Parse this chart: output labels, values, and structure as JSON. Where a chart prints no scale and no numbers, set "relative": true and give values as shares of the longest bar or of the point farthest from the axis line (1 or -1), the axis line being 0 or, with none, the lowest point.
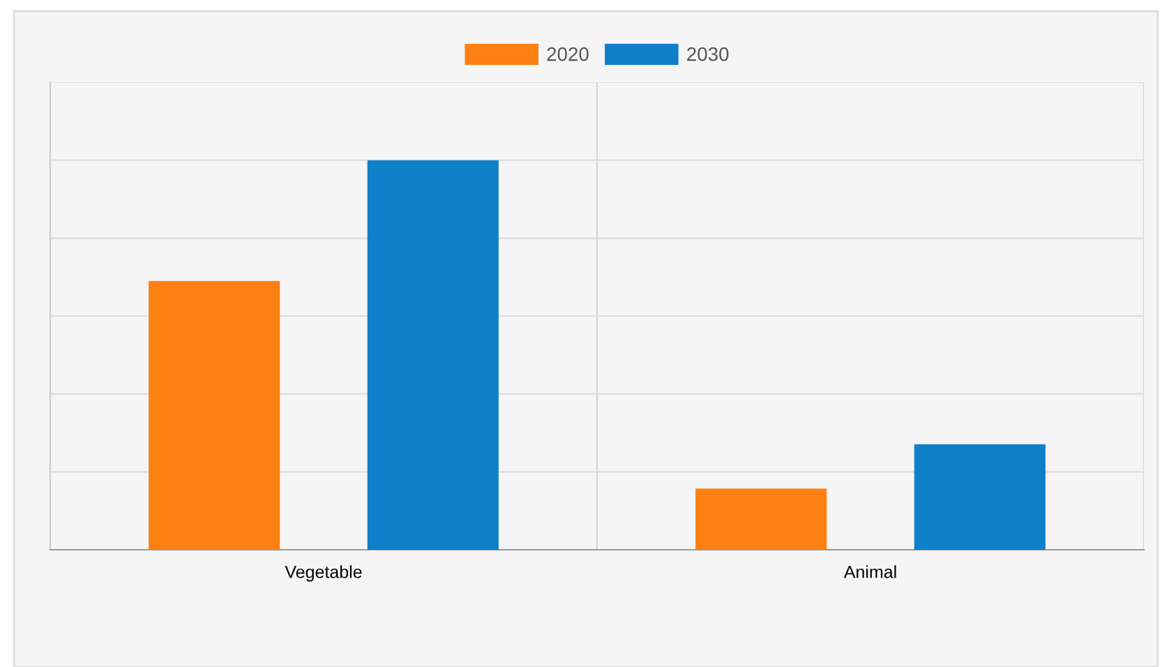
{
  "chart_data": {
    "type": "bar",
    "relative": true,
    "categories": [
      "Vegetable",
      "Animal"
    ],
    "series": [
      {
        "name": "2020",
        "color": "#fd8012",
        "values": [
          0.69,
          0.157
        ]
      },
      {
        "name": "2030",
        "color": "#0f7fc9",
        "values": [
          1,
          0.271
        ]
      }
    ],
    "grid": true,
    "legend": "top"
  }
}
